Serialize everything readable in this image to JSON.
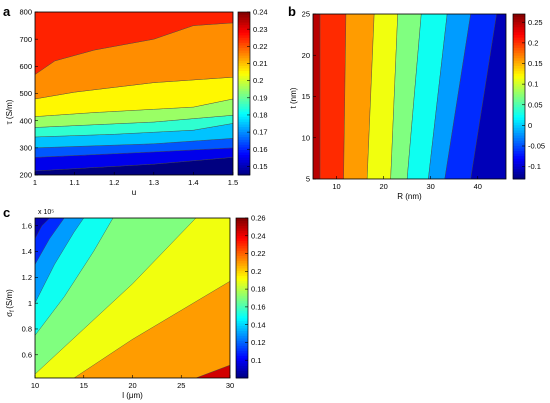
{
  "chart_data": [
    {
      "type": "heatmap",
      "panel_label": "a",
      "xlabel": "u",
      "ylabel": "τ (S/m)",
      "xlim": [
        1,
        1.5
      ],
      "ylim": [
        200,
        800
      ],
      "xticks": [
        "1",
        "1.1",
        "1.2",
        "1.3",
        "1.4",
        "1.5"
      ],
      "yticks": [
        "200",
        "300",
        "400",
        "500",
        "600",
        "700",
        "800"
      ],
      "clim": [
        0.145,
        0.24
      ],
      "colorbar_ticks": [
        "0.24",
        "0.23",
        "0.22",
        "0.21",
        "0.2",
        "0.19",
        "0.18",
        "0.17",
        "0.16",
        "0.15"
      ],
      "levels": [
        0.15,
        0.16,
        0.17,
        0.18,
        0.19,
        0.2,
        0.21,
        0.22,
        0.23,
        0.24
      ],
      "band_bounds": [
        {
          "x": [
            1,
            1.5
          ],
          "y": [
            200,
            200
          ]
        },
        {
          "x": [
            1,
            1.3,
            1.5
          ],
          "y": [
            215,
            240,
            265
          ]
        },
        {
          "x": [
            1,
            1.3,
            1.5
          ],
          "y": [
            265,
            285,
            300
          ]
        },
        {
          "x": [
            1,
            1.3,
            1.5
          ],
          "y": [
            300,
            315,
            335
          ]
        },
        {
          "x": [
            1,
            1.2,
            1.4,
            1.5
          ],
          "y": [
            340,
            350,
            365,
            390
          ]
        },
        {
          "x": [
            1,
            1.15,
            1.3,
            1.5
          ],
          "y": [
            375,
            385,
            395,
            420
          ]
        },
        {
          "x": [
            1,
            1.15,
            1.4,
            1.5
          ],
          "y": [
            415,
            430,
            450,
            480
          ]
        },
        {
          "x": [
            1,
            1.1,
            1.3,
            1.5
          ],
          "y": [
            480,
            505,
            540,
            560
          ]
        },
        {
          "x": [
            1,
            1.05,
            1.15,
            1.3,
            1.4,
            1.5
          ],
          "y": [
            570,
            620,
            660,
            700,
            750,
            760
          ]
        },
        {
          "x": [
            1,
            1.5
          ],
          "y": [
            800,
            800
          ]
        }
      ]
    },
    {
      "type": "heatmap",
      "panel_label": "b",
      "xlabel": "R (nm)",
      "ylabel": "t (nm)",
      "xlim": [
        5,
        46
      ],
      "ylim": [
        5,
        25
      ],
      "xticks": [
        "10",
        "20",
        "30",
        "40"
      ],
      "yticks": [
        "5",
        "10",
        "15",
        "20",
        "25"
      ],
      "clim": [
        -0.13,
        0.27
      ],
      "colorbar_ticks": [
        "0.25",
        "0.2",
        "0.15",
        "0.1",
        "0.05",
        "0",
        "-0.05",
        "-0.1"
      ],
      "levels": [
        -0.1,
        -0.05,
        0,
        0.05,
        0.1,
        0.15,
        0.2,
        0.25
      ],
      "bands_r_at_t5": [
        5,
        6.5,
        11.5,
        16.5,
        21.5,
        25,
        29.5,
        33,
        38.5,
        46
      ],
      "bands_r_at_t25": [
        5,
        6.5,
        12,
        18,
        23,
        28,
        33.5,
        38.5,
        44,
        46
      ]
    },
    {
      "type": "heatmap",
      "panel_label": "c",
      "xlabel": "l (μm)",
      "ylabel": "σf (S/m)",
      "ylabel_main": "σ",
      "ylabel_sub": "f",
      "ylabel_unit": "(S/m)",
      "y_multiplier": "x 10⁵",
      "xlim": [
        10,
        30
      ],
      "ylim": [
        0.42,
        1.66
      ],
      "xticks": [
        "10",
        "15",
        "20",
        "25",
        "30"
      ],
      "yticks": [
        "0.6",
        "0.8",
        "1",
        "1.2",
        "1.4",
        "1.6"
      ],
      "clim": [
        0.08,
        0.26
      ],
      "colorbar_ticks": [
        "0.26",
        "0.24",
        "0.22",
        "0.2",
        "0.18",
        "0.16",
        "0.14",
        "0.12",
        "0.1"
      ],
      "levels": [
        0.1,
        0.12,
        0.14,
        0.16,
        0.18,
        0.2,
        0.22,
        0.24,
        0.26
      ],
      "band_bounds": [
        {
          "x": [
            10,
            30
          ],
          "y": [
            1.66,
            1.66
          ]
        },
        {
          "x": [
            10,
            10.7,
            11.5
          ],
          "y": [
            1.5,
            1.6,
            1.66
          ]
        },
        {
          "x": [
            10,
            11.5,
            13
          ],
          "y": [
            1.3,
            1.5,
            1.66
          ]
        },
        {
          "x": [
            10,
            12,
            14,
            15
          ],
          "y": [
            1.0,
            1.3,
            1.55,
            1.66
          ]
        },
        {
          "x": [
            10,
            13,
            16,
            18
          ],
          "y": [
            0.75,
            1.05,
            1.4,
            1.66
          ]
        },
        {
          "x": [
            10,
            15,
            20,
            26.5
          ],
          "y": [
            0.45,
            0.8,
            1.15,
            1.66
          ]
        },
        {
          "x": [
            14,
            20,
            30
          ],
          "y": [
            0.42,
            0.72,
            1.17
          ]
        },
        {
          "x": [
            26.5,
            30
          ],
          "y": [
            0.42,
            0.52
          ]
        },
        {
          "x": [
            10,
            30
          ],
          "y": [
            0.42,
            0.42
          ]
        }
      ]
    }
  ]
}
